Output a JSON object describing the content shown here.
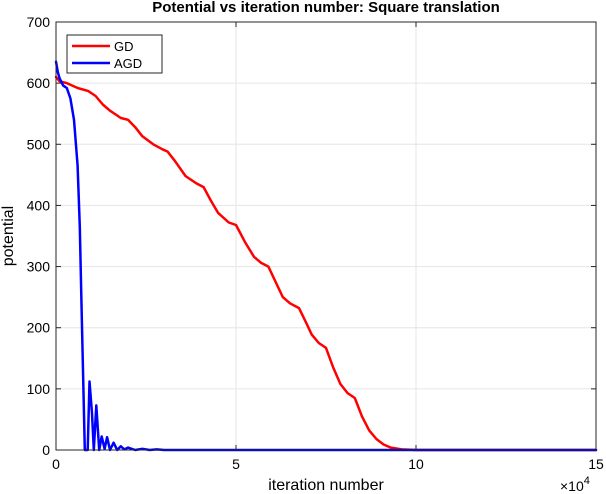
{
  "chart_data": {
    "type": "line",
    "title": "Potential vs iteration number: Square translation",
    "xlabel": "iteration number",
    "ylabel": "potential",
    "x_multiplier_label": "×10",
    "x_multiplier_exponent": "4",
    "xlim": [
      0,
      15
    ],
    "ylim": [
      0,
      700
    ],
    "xticks": [
      0,
      5,
      10,
      15
    ],
    "yticks": [
      0,
      100,
      200,
      300,
      400,
      500,
      600,
      700
    ],
    "grid": true,
    "legend_position": "top-left",
    "series": [
      {
        "name": "GD",
        "color": "#ff0000",
        "x": [
          0,
          0.1,
          0.3,
          0.6,
          0.9,
          1.1,
          1.3,
          1.5,
          1.7,
          1.8,
          2.0,
          2.2,
          2.4,
          2.7,
          2.95,
          3.1,
          3.3,
          3.6,
          3.9,
          4.1,
          4.3,
          4.5,
          4.8,
          5.0,
          5.25,
          5.5,
          5.7,
          5.9,
          6.1,
          6.3,
          6.5,
          6.75,
          6.95,
          7.1,
          7.3,
          7.5,
          7.7,
          7.9,
          8.1,
          8.3,
          8.5,
          8.7,
          8.9,
          9.1,
          9.3,
          9.6,
          10.0,
          12.0,
          15.0
        ],
        "y": [
          610,
          603,
          600,
          592,
          587,
          579,
          565,
          555,
          547,
          543,
          540,
          528,
          513,
          500,
          492,
          488,
          473,
          448,
          436,
          430,
          408,
          388,
          372,
          368,
          340,
          316,
          306,
          300,
          275,
          250,
          240,
          232,
          208,
          189,
          175,
          167,
          135,
          108,
          93,
          85,
          55,
          32,
          18,
          9,
          4,
          1,
          0,
          0,
          0
        ]
      },
      {
        "name": "AGD",
        "color": "#0000ff",
        "x": [
          0,
          0.05,
          0.1,
          0.2,
          0.3,
          0.4,
          0.5,
          0.6,
          0.66,
          0.7,
          0.75,
          0.8,
          0.88,
          0.93,
          1.0,
          1.05,
          1.12,
          1.2,
          1.27,
          1.35,
          1.42,
          1.5,
          1.6,
          1.7,
          1.8,
          1.9,
          2.0,
          2.2,
          2.4,
          2.6,
          2.8,
          3.0,
          3.5,
          4.0,
          6.0,
          15.0
        ],
        "y": [
          635,
          618,
          608,
          596,
          592,
          575,
          540,
          465,
          365,
          260,
          130,
          0,
          0,
          112,
          60,
          0,
          73,
          0,
          22,
          2,
          21,
          0,
          12,
          0,
          6,
          1,
          4,
          0,
          2,
          0,
          1,
          0,
          0,
          0,
          0,
          0
        ]
      }
    ]
  }
}
